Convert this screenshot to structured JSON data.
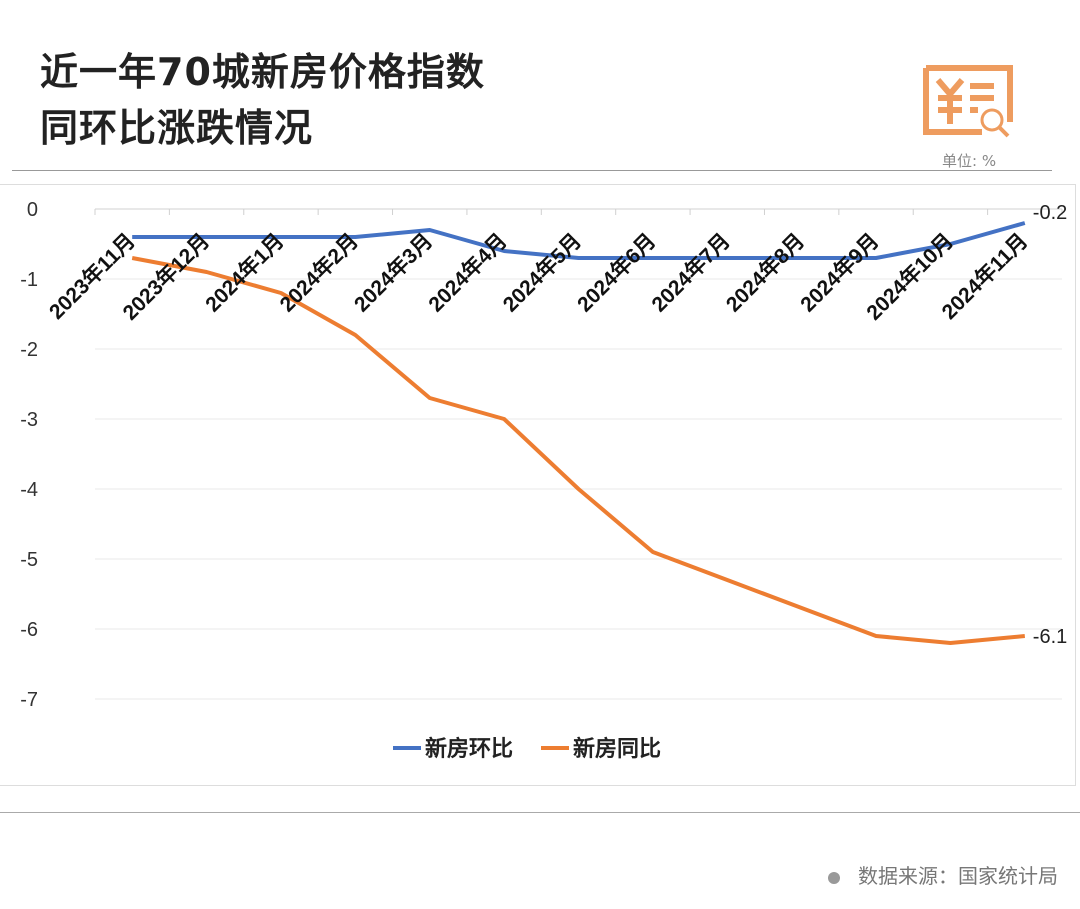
{
  "header": {
    "title_line1": "近一年70城新房价格指数",
    "title_line2": "同环比涨跌情况",
    "unit": "单位: %",
    "icon": "yuan-document-search-icon"
  },
  "footer": {
    "source": "数据来源：国家统计局"
  },
  "chart_data": {
    "type": "line",
    "title": "",
    "categories": [
      "2023年11月",
      "2023年12月",
      "2024年1月",
      "2024年2月",
      "2024年3月",
      "2024年4月",
      "2024年5月",
      "2024年6月",
      "2024年7月",
      "2024年8月",
      "2024年9月",
      "2024年10月",
      "2024年11月"
    ],
    "series": [
      {
        "name": "新房环比",
        "color": "#4472C4",
        "values": [
          -0.4,
          -0.4,
          -0.4,
          -0.4,
          -0.3,
          -0.6,
          -0.7,
          -0.7,
          -0.7,
          -0.7,
          -0.7,
          -0.5,
          -0.2
        ],
        "end_label": "-0.2"
      },
      {
        "name": "新房同比",
        "color": "#ED7D31",
        "values": [
          -0.7,
          -0.9,
          -1.2,
          -1.8,
          -2.7,
          -3.0,
          -4.0,
          -4.9,
          -5.3,
          -5.7,
          -6.1,
          -6.2,
          -6.1
        ],
        "end_label": "-6.1"
      }
    ],
    "yticks": [
      "0",
      "-1",
      "-2",
      "-3",
      "-4",
      "-5",
      "-6",
      "-7"
    ],
    "ylim": [
      -7,
      0
    ],
    "grid": true,
    "legend": "bottom"
  }
}
